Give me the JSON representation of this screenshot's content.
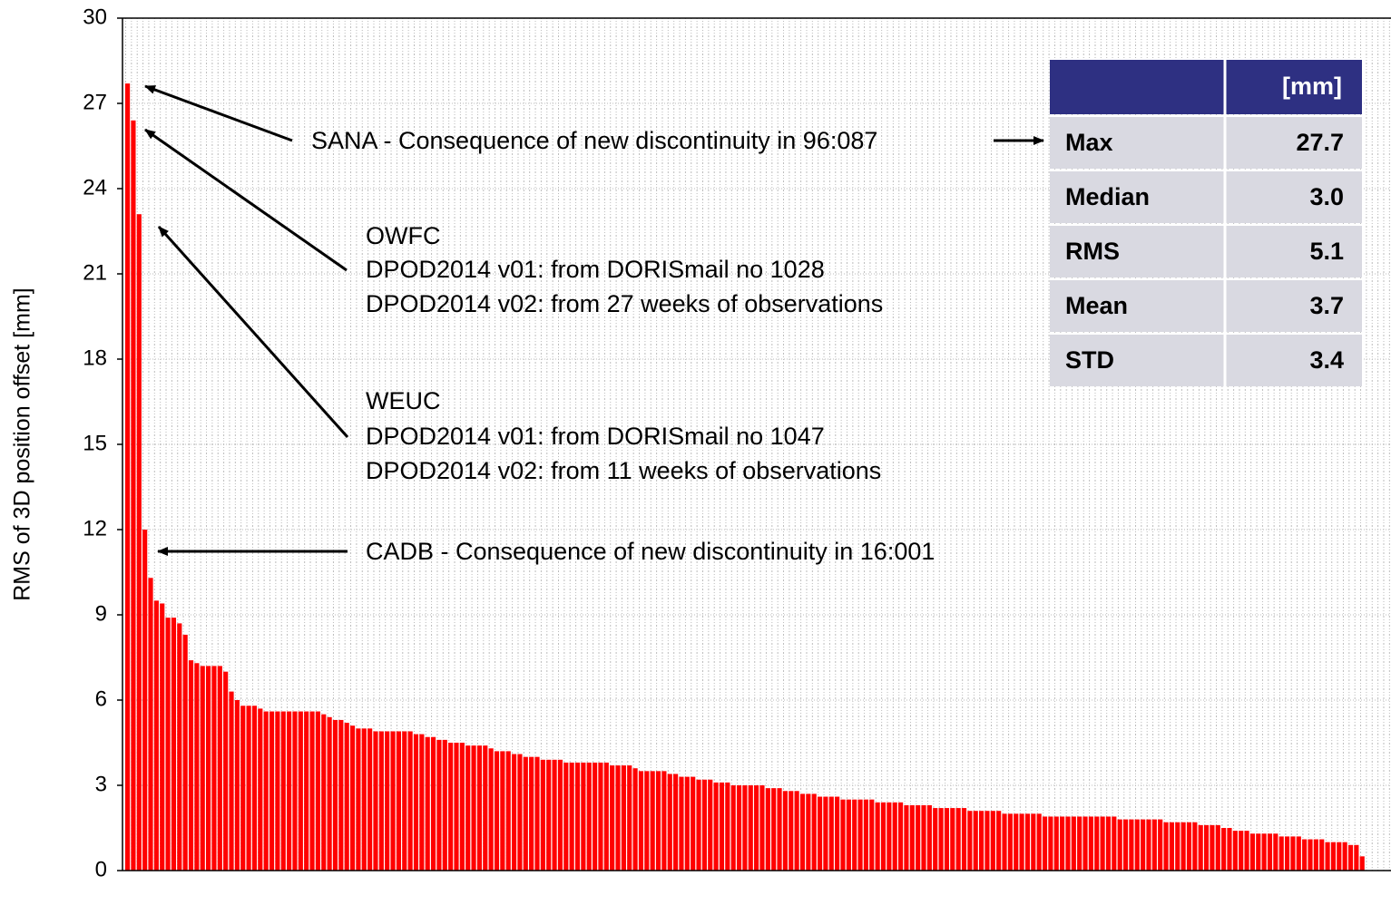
{
  "chart_data": {
    "type": "bar",
    "ylabel": "RMS of 3D position offset [mm]",
    "color": "#ff0000",
    "ylim": [
      0,
      30
    ],
    "yticks": [
      0,
      3,
      6,
      9,
      12,
      15,
      18,
      21,
      24,
      27,
      30
    ],
    "grid": true,
    "values": [
      27.7,
      26.4,
      23.1,
      12.0,
      10.3,
      9.5,
      9.4,
      8.9,
      8.9,
      8.7,
      8.3,
      7.4,
      7.3,
      7.2,
      7.2,
      7.2,
      7.2,
      7.0,
      6.3,
      6.0,
      5.8,
      5.8,
      5.8,
      5.7,
      5.6,
      5.6,
      5.6,
      5.6,
      5.6,
      5.6,
      5.6,
      5.6,
      5.6,
      5.6,
      5.5,
      5.4,
      5.3,
      5.3,
      5.2,
      5.1,
      5.0,
      5.0,
      5.0,
      4.9,
      4.9,
      4.9,
      4.9,
      4.9,
      4.9,
      4.9,
      4.8,
      4.8,
      4.7,
      4.7,
      4.6,
      4.6,
      4.5,
      4.5,
      4.5,
      4.4,
      4.4,
      4.4,
      4.4,
      4.3,
      4.2,
      4.2,
      4.2,
      4.1,
      4.1,
      4.0,
      4.0,
      4.0,
      3.9,
      3.9,
      3.9,
      3.9,
      3.8,
      3.8,
      3.8,
      3.8,
      3.8,
      3.8,
      3.8,
      3.8,
      3.7,
      3.7,
      3.7,
      3.7,
      3.6,
      3.5,
      3.5,
      3.5,
      3.5,
      3.5,
      3.4,
      3.4,
      3.3,
      3.3,
      3.3,
      3.2,
      3.2,
      3.2,
      3.1,
      3.1,
      3.1,
      3.0,
      3.0,
      3.0,
      3.0,
      3.0,
      3.0,
      2.9,
      2.9,
      2.9,
      2.8,
      2.8,
      2.8,
      2.7,
      2.7,
      2.7,
      2.6,
      2.6,
      2.6,
      2.6,
      2.5,
      2.5,
      2.5,
      2.5,
      2.5,
      2.5,
      2.4,
      2.4,
      2.4,
      2.4,
      2.4,
      2.3,
      2.3,
      2.3,
      2.3,
      2.3,
      2.2,
      2.2,
      2.2,
      2.2,
      2.2,
      2.2,
      2.1,
      2.1,
      2.1,
      2.1,
      2.1,
      2.1,
      2.0,
      2.0,
      2.0,
      2.0,
      2.0,
      2.0,
      2.0,
      1.9,
      1.9,
      1.9,
      1.9,
      1.9,
      1.9,
      1.9,
      1.9,
      1.9,
      1.9,
      1.9,
      1.9,
      1.9,
      1.8,
      1.8,
      1.8,
      1.8,
      1.8,
      1.8,
      1.8,
      1.8,
      1.7,
      1.7,
      1.7,
      1.7,
      1.7,
      1.7,
      1.6,
      1.6,
      1.6,
      1.6,
      1.5,
      1.5,
      1.4,
      1.4,
      1.4,
      1.3,
      1.3,
      1.3,
      1.3,
      1.3,
      1.2,
      1.2,
      1.2,
      1.2,
      1.1,
      1.1,
      1.1,
      1.1,
      1.0,
      1.0,
      1.0,
      1.0,
      0.9,
      0.9,
      0.5
    ],
    "annotations": [
      "SANA - Consequence of new discontinuity in 96:087",
      "OWFC",
      "DPOD2014 v01: from DORISmail no 1028",
      "DPOD2014 v02: from 27 weeks of observations",
      "WEUC",
      "DPOD2014 v01: from DORISmail no 1047",
      "DPOD2014 v02: from 11 weeks of observations",
      "CADB - Consequence of new discontinuity in 16:001"
    ]
  },
  "table": {
    "header": "[mm]",
    "rows": [
      [
        "Max",
        "27.7"
      ],
      [
        "Median",
        "3.0"
      ],
      [
        "RMS",
        "5.1"
      ],
      [
        "Mean",
        "3.7"
      ],
      [
        "STD",
        "3.4"
      ]
    ]
  }
}
